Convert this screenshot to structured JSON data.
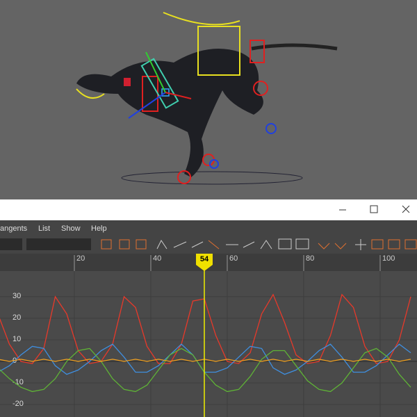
{
  "menu": [
    "angents",
    "List",
    "Show",
    "Help"
  ],
  "chart_data": {
    "type": "line",
    "current_frame": 54,
    "x": [
      0,
      3,
      6,
      9,
      12,
      15,
      18,
      21,
      24,
      27,
      30,
      33,
      36,
      39,
      42,
      45,
      48,
      51,
      54,
      57,
      60,
      63,
      66,
      69,
      72,
      75,
      78,
      81,
      84,
      87,
      90,
      93,
      96,
      99,
      102,
      105,
      108
    ],
    "series": [
      {
        "color": "#e8392a",
        "values": [
          22,
          8,
          0,
          -1,
          6,
          30,
          22,
          5,
          -1,
          0,
          8,
          30,
          25,
          7,
          -1,
          -1,
          8,
          28,
          29,
          12,
          0,
          -1,
          4,
          22,
          31,
          18,
          3,
          -1,
          0,
          12,
          31,
          25,
          7,
          -1,
          0,
          10,
          30
        ]
      },
      {
        "color": "#3f8fe0",
        "values": [
          -5,
          -2,
          3,
          7,
          6,
          -2,
          -6,
          -4,
          0,
          5,
          8,
          2,
          -5,
          -5,
          -2,
          3,
          8,
          3,
          -5,
          -5,
          -3,
          2,
          7,
          6,
          -3,
          -6,
          -4,
          0,
          5,
          8,
          2,
          -5,
          -5,
          -2,
          3,
          8,
          4
        ]
      },
      {
        "color": "#5fb336",
        "values": [
          -3,
          -8,
          -12,
          -14,
          -13,
          -8,
          0,
          5,
          6,
          0,
          -8,
          -13,
          -14,
          -11,
          -4,
          3,
          6,
          3,
          -5,
          -11,
          -14,
          -13,
          -7,
          1,
          5,
          5,
          -2,
          -9,
          -13,
          -14,
          -10,
          -3,
          4,
          6,
          2,
          -6,
          -12
        ]
      },
      {
        "color": "#f0a020",
        "values": [
          1,
          0,
          1,
          0,
          1,
          0,
          1,
          0,
          1,
          0,
          1,
          0,
          1,
          0,
          1,
          0,
          1,
          0,
          1,
          0,
          1,
          0,
          1,
          0,
          1,
          0,
          1,
          0,
          1,
          0,
          1,
          0,
          1,
          0,
          1,
          0,
          1
        ]
      }
    ],
    "xlim": [
      0.55,
      109.64
    ],
    "ylim": [
      -25.8,
      41.9
    ],
    "xticks": [
      20,
      40,
      60,
      80,
      100
    ],
    "yticks": [
      30,
      20,
      10,
      0,
      -10,
      -20
    ],
    "grid": true
  }
}
